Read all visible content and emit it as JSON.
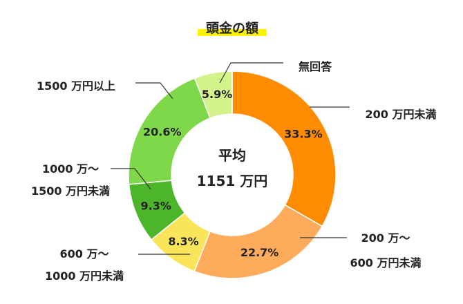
{
  "chart_data": {
    "type": "pie",
    "title": "頭金の額",
    "center_label": [
      "平均",
      "1151 万円"
    ],
    "slices": [
      {
        "label": [
          "200 万円未満"
        ],
        "value": 33.3,
        "display": "33.3%",
        "color": "#ff8c00"
      },
      {
        "label": [
          "200 万～",
          "600 万円未満"
        ],
        "value": 22.7,
        "display": "22.7%",
        "color": "#ffab5c"
      },
      {
        "label": [
          "600 万～",
          "1000 万円未満"
        ],
        "value": 8.3,
        "display": "8.3%",
        "color": "#f9e45a"
      },
      {
        "label": [
          "1000 万～",
          "1500 万円未満"
        ],
        "value": 9.3,
        "display": "9.3%",
        "color": "#4db52a"
      },
      {
        "label": [
          "1500 万円以上"
        ],
        "value": 20.6,
        "display": "20.6%",
        "color": "#7fd84a"
      },
      {
        "label": [
          "無回答"
        ],
        "value": 5.9,
        "display": "5.9%",
        "color": "#d4f28a"
      }
    ]
  }
}
